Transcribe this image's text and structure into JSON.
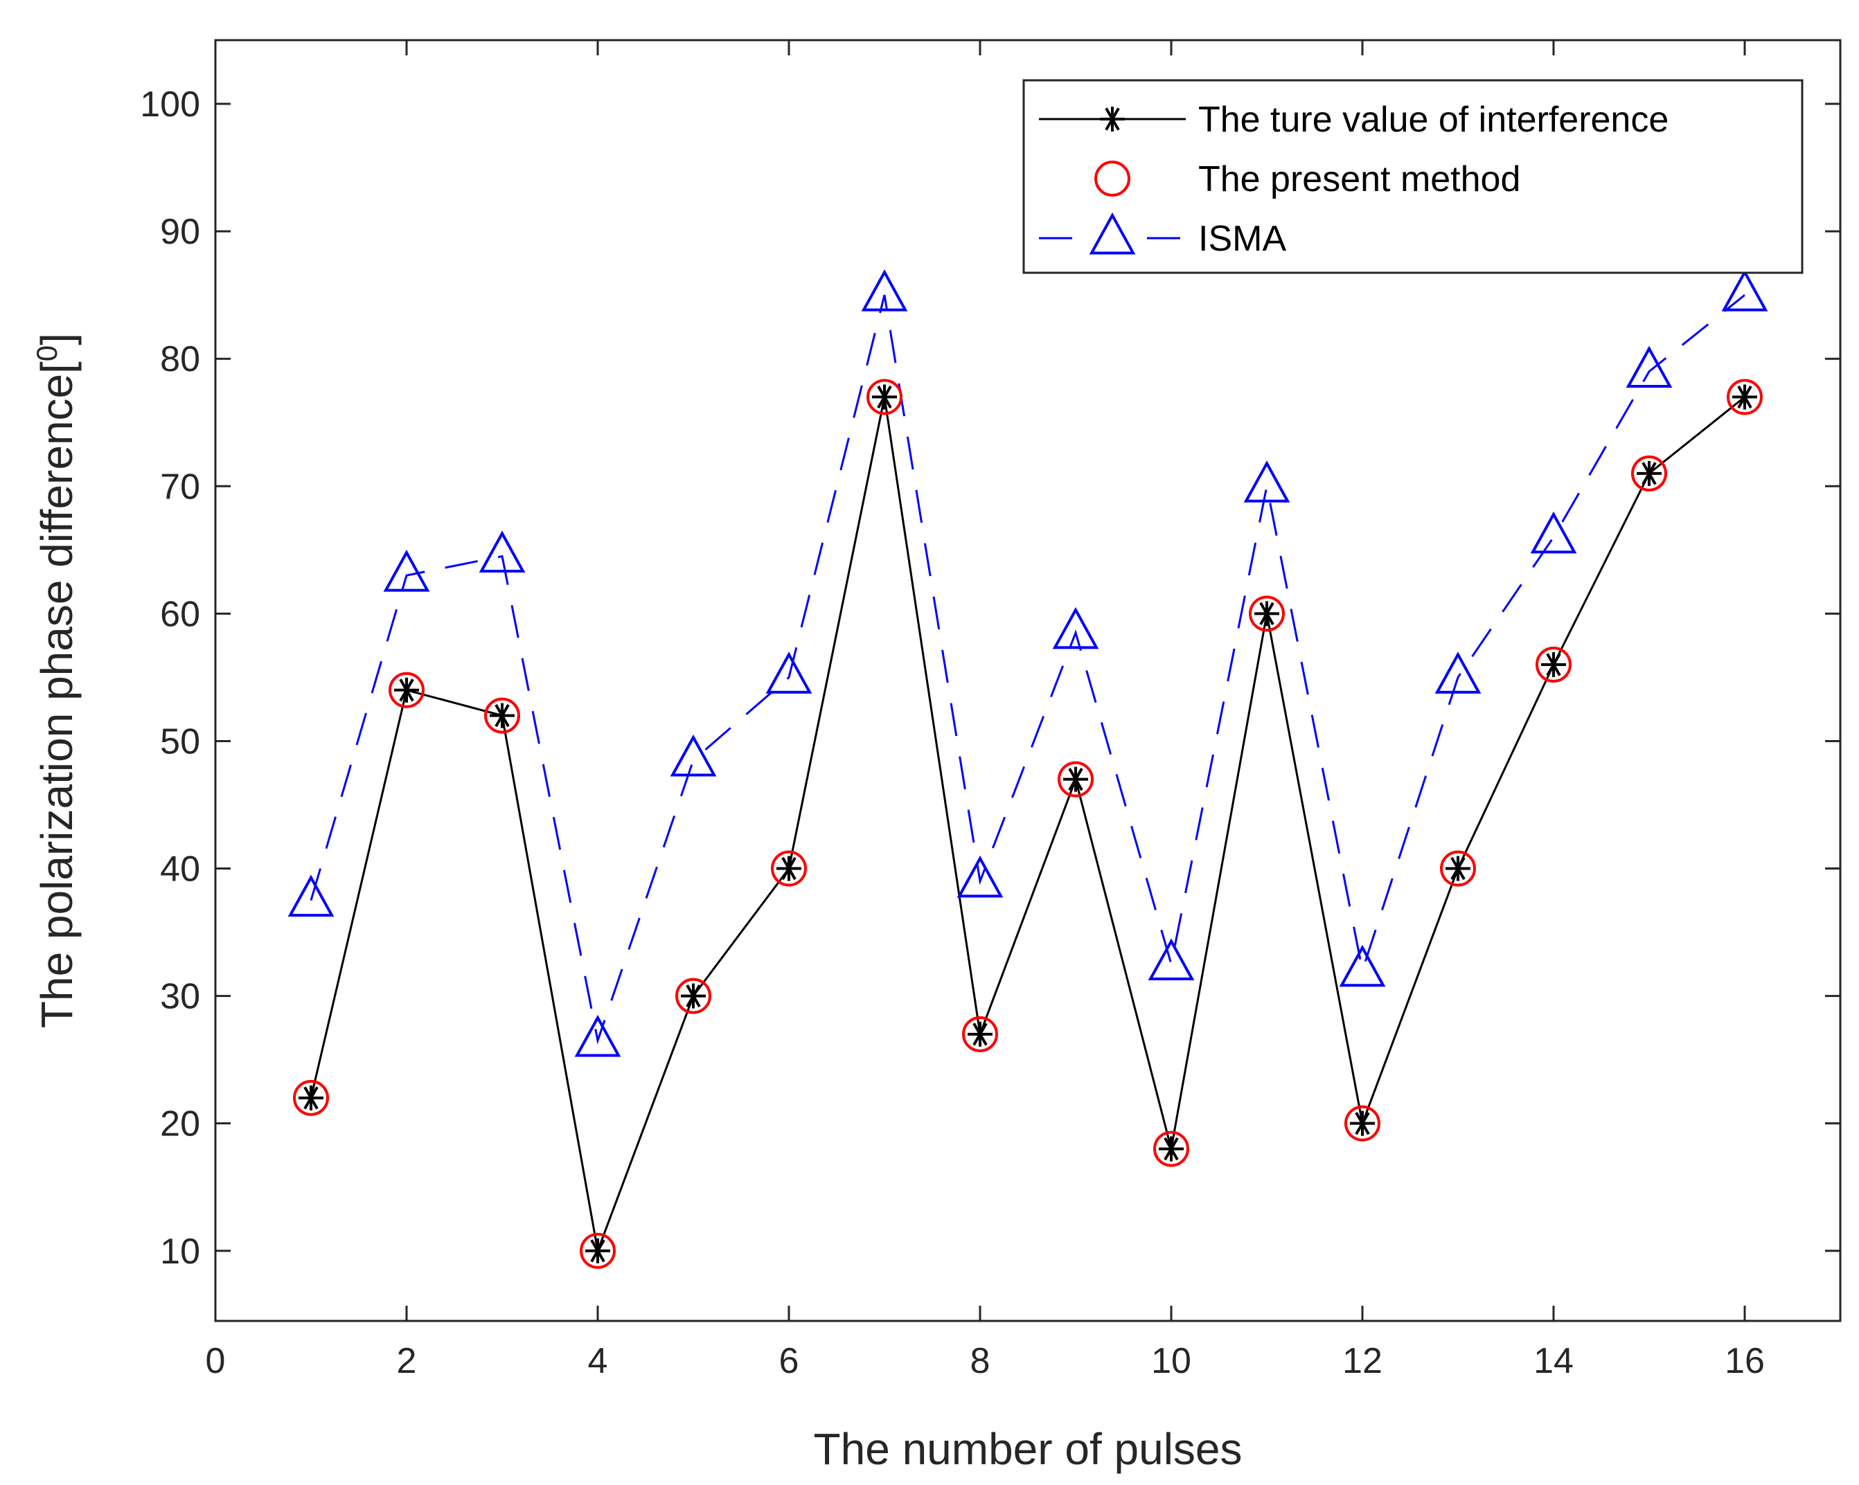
{
  "chart_data": {
    "type": "line",
    "title": "",
    "xlabel": "The number of pulses",
    "ylabel": "The polarization phase difference[0]",
    "ylabel_main": "The polarization phase difference[",
    "ylabel_sup": "0",
    "ylabel_close": "]",
    "xlim": [
      0,
      17
    ],
    "ylim": [
      4.5,
      105
    ],
    "x_ticks": [
      0,
      2,
      4,
      6,
      8,
      10,
      12,
      14,
      16
    ],
    "y_ticks": [
      10,
      20,
      30,
      40,
      50,
      60,
      70,
      80,
      90,
      100
    ],
    "grid": false,
    "legend_position": "top-right",
    "x": [
      1,
      2,
      3,
      4,
      5,
      6,
      7,
      8,
      9,
      10,
      11,
      12,
      13,
      14,
      15,
      16
    ],
    "series": [
      {
        "name": "The ture value of interference",
        "values": [
          22,
          54,
          52,
          10,
          30,
          40,
          77,
          27,
          47,
          18,
          60,
          20,
          40,
          56,
          71,
          77
        ],
        "color": "#000000",
        "line": "solid",
        "marker": "asterisk"
      },
      {
        "name": "The present method",
        "values": [
          22,
          54,
          52,
          10,
          30,
          40,
          77,
          27,
          47,
          18,
          60,
          20,
          40,
          56,
          71,
          77
        ],
        "color": "#ff0000",
        "line": "none",
        "marker": "circle"
      },
      {
        "name": "ISMA",
        "values": [
          37.5,
          63,
          64.5,
          26.5,
          48.5,
          55,
          85,
          39,
          58.5,
          32.5,
          70,
          32,
          55,
          66,
          79,
          85
        ],
        "color": "#0000ff",
        "line": "dashed",
        "marker": "triangle"
      }
    ]
  }
}
